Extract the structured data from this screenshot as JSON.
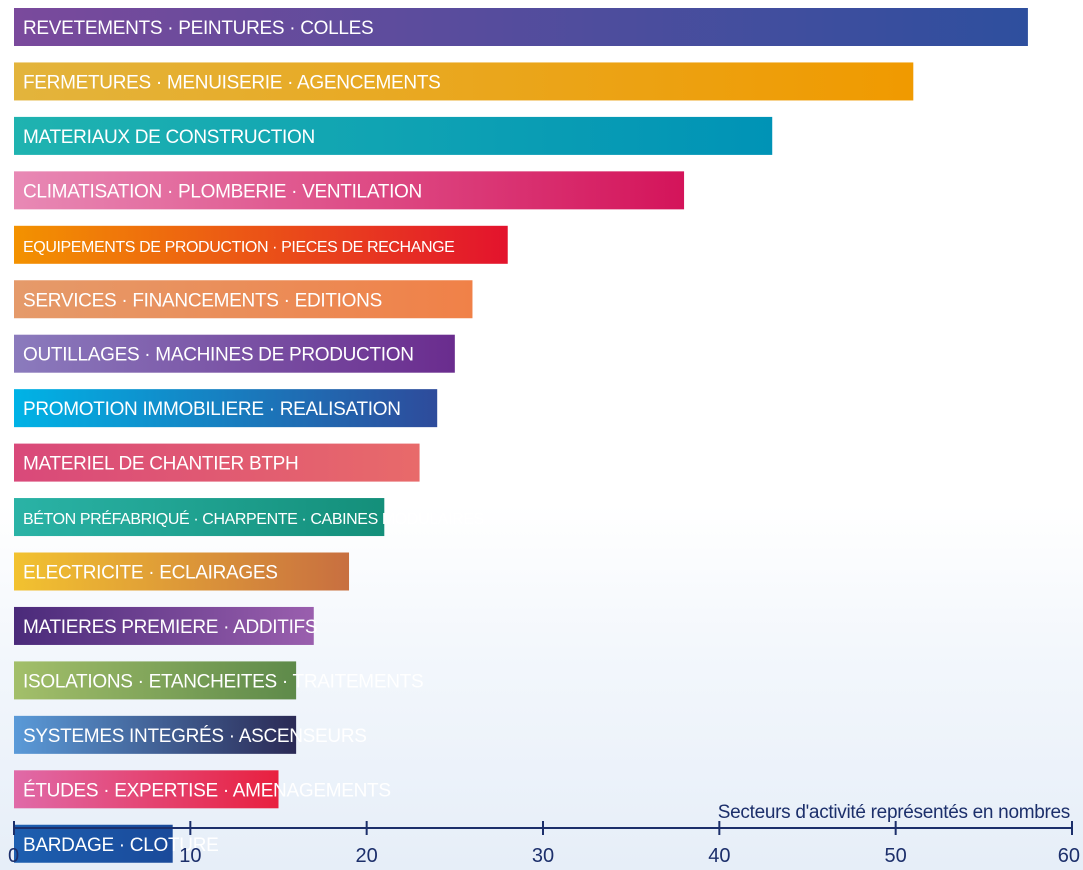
{
  "chart_data": {
    "type": "bar",
    "orientation": "horizontal",
    "xlabel": "Secteurs d'activité représentés en nombres",
    "xlim": [
      0,
      60
    ],
    "xticks": [
      0,
      10,
      20,
      30,
      40,
      50,
      60
    ],
    "grid": false,
    "legend": "none",
    "bars": [
      {
        "label": "REVETEMENTS · PEINTURES · COLLES",
        "value": 57.5,
        "colors": [
          "#7a4a9c",
          "#2e4f9e"
        ]
      },
      {
        "label": "FERMETURES · MENUISERIE · AGENCEMENTS",
        "value": 51,
        "colors": [
          "#e3b43c",
          "#f09a00"
        ]
      },
      {
        "label": "MATERIAUX DE CONSTRUCTION",
        "value": 43,
        "colors": [
          "#1fb3b0",
          "#0093b6"
        ]
      },
      {
        "label": "CLIMATISATION · PLOMBERIE · VENTILATION",
        "value": 38,
        "colors": [
          "#e889b5",
          "#d4145a"
        ]
      },
      {
        "label": "EQUIPEMENTS DE PRODUCTION · PIECES DE RECHANGE",
        "value": 28,
        "colors": [
          "#f39200",
          "#e3132d"
        ]
      },
      {
        "label": "SERVICES · FINANCEMENTS · EDITIONS",
        "value": 26,
        "colors": [
          "#e59a6a",
          "#f08148"
        ]
      },
      {
        "label": "OUTILLAGES · MACHINES DE PRODUCTION",
        "value": 25,
        "colors": [
          "#8b7bbd",
          "#6a2c8e"
        ]
      },
      {
        "label": "PROMOTION IMMOBILIERE · REALISATION",
        "value": 24,
        "colors": [
          "#00b3e6",
          "#2e4b9b"
        ]
      },
      {
        "label": "MATERIEL DE CHANTIER BTPH",
        "value": 23,
        "colors": [
          "#d9497a",
          "#e86a6a"
        ]
      },
      {
        "label": "BÉTON PRÉFABRIQUÉ · CHARPENTE · CABINES MODULAIRES",
        "value": 21,
        "colors": [
          "#2ab3a6",
          "#148f7a"
        ]
      },
      {
        "label": "ELECTRICITE · ECLAIRAGES",
        "value": 19,
        "colors": [
          "#f2c230",
          "#c86f40"
        ]
      },
      {
        "label": "MATIERES PREMIERE · ADDITIFS",
        "value": 17,
        "colors": [
          "#4a2a7a",
          "#9a5fae"
        ]
      },
      {
        "label": "ISOLATIONS · ETANCHEITES · TRAITEMENTS",
        "value": 16,
        "colors": [
          "#a3bf6a",
          "#5e8a4a"
        ]
      },
      {
        "label": "SYSTEMES INTEGRÉS · ASCENSEURS",
        "value": 16,
        "colors": [
          "#5a9ad8",
          "#2b2a55"
        ]
      },
      {
        "label": "ÉTUDES · EXPERTISE · AMENAGEMENTS",
        "value": 15,
        "colors": [
          "#e06aa8",
          "#e8203f"
        ]
      },
      {
        "label": "BARDAGE · CLOTURE",
        "value": 9,
        "colors": [
          "#1d5fb0",
          "#1a4a9a"
        ]
      }
    ]
  }
}
